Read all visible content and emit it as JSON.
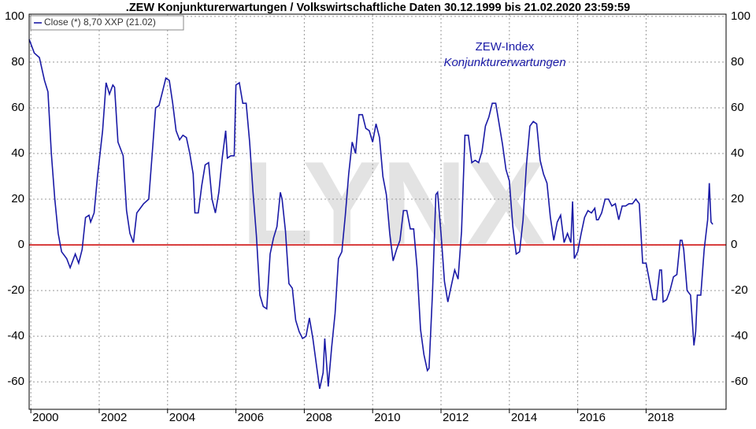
{
  "chart_data": {
    "type": "line",
    "title": ".ZEW Konjunkturerwartungen / Volkswirtschaftliche Daten 30.12.1999 bis 21.02.2020 23:59:59",
    "annotations": [
      "ZEW-Index",
      "Konjunkturerwartungen"
    ],
    "watermark": "LYNX",
    "legend": "top-left",
    "grid": true,
    "reference_line": {
      "value": 0,
      "color": "#cc0000"
    },
    "xlim": [
      1999.95,
      2020.34
    ],
    "xticks": [
      2000,
      2002,
      2004,
      2006,
      2008,
      2010,
      2012,
      2014,
      2016,
      2018
    ],
    "ylim": [
      -72,
      101
    ],
    "yticks": [
      -60,
      -40,
      -20,
      0,
      20,
      40,
      60,
      80,
      100
    ],
    "x": [
      1999.95,
      2000.1,
      2000.25,
      2000.4,
      2000.5,
      2000.6,
      2000.7,
      2000.8,
      2000.9,
      2001.05,
      2001.15,
      2001.3,
      2001.4,
      2001.5,
      2001.6,
      2001.7,
      2001.75,
      2001.85,
      2001.95,
      2002.1,
      2002.2,
      2002.3,
      2002.4,
      2002.45,
      2002.55,
      2002.7,
      2002.8,
      2002.9,
      2003.0,
      2003.1,
      2003.2,
      2003.3,
      2003.45,
      2003.55,
      2003.65,
      2003.75,
      2003.85,
      2003.95,
      2004.05,
      2004.15,
      2004.25,
      2004.35,
      2004.45,
      2004.55,
      2004.65,
      2004.75,
      2004.8,
      2004.9,
      2005.0,
      2005.1,
      2005.2,
      2005.3,
      2005.4,
      2005.5,
      2005.6,
      2005.7,
      2005.75,
      2005.85,
      2005.95,
      2006.0,
      2006.1,
      2006.2,
      2006.3,
      2006.4,
      2006.5,
      2006.6,
      2006.7,
      2006.8,
      2006.9,
      2007.0,
      2007.1,
      2007.2,
      2007.3,
      2007.35,
      2007.45,
      2007.55,
      2007.65,
      2007.75,
      2007.85,
      2007.95,
      2008.05,
      2008.15,
      2008.25,
      2008.35,
      2008.45,
      2008.55,
      2008.6,
      2008.7,
      2008.8,
      2008.9,
      2009.0,
      2009.1,
      2009.2,
      2009.3,
      2009.4,
      2009.5,
      2009.6,
      2009.7,
      2009.8,
      2009.9,
      2010.0,
      2010.1,
      2010.2,
      2010.3,
      2010.4,
      2010.5,
      2010.6,
      2010.7,
      2010.8,
      2010.9,
      2011.0,
      2011.1,
      2011.2,
      2011.3,
      2011.4,
      2011.5,
      2011.6,
      2011.65,
      2011.75,
      2011.85,
      2011.9,
      2012.0,
      2012.1,
      2012.2,
      2012.3,
      2012.4,
      2012.5,
      2012.6,
      2012.7,
      2012.8,
      2012.9,
      2013.0,
      2013.1,
      2013.2,
      2013.3,
      2013.4,
      2013.5,
      2013.6,
      2013.7,
      2013.8,
      2013.9,
      2014.0,
      2014.1,
      2014.2,
      2014.3,
      2014.4,
      2014.5,
      2014.6,
      2014.7,
      2014.8,
      2014.9,
      2015.0,
      2015.1,
      2015.2,
      2015.3,
      2015.4,
      2015.5,
      2015.6,
      2015.7,
      2015.8,
      2015.85,
      2015.9,
      2016.0,
      2016.1,
      2016.2,
      2016.3,
      2016.4,
      2016.5,
      2016.55,
      2016.6,
      2016.7,
      2016.8,
      2016.9,
      2017.0,
      2017.1,
      2017.2,
      2017.3,
      2017.4,
      2017.5,
      2017.6,
      2017.7,
      2017.8,
      2017.9,
      2018.0,
      2018.1,
      2018.2,
      2018.3,
      2018.4,
      2018.45,
      2018.5,
      2018.6,
      2018.7,
      2018.8,
      2018.9,
      2019.0,
      2019.05,
      2019.1,
      2019.2,
      2019.3,
      2019.4,
      2019.45,
      2019.5,
      2019.6,
      2019.7,
      2019.8,
      2019.85,
      2019.9,
      2019.95
    ],
    "series": [
      {
        "name": "Close (*) 8,70 XXP (21.02)",
        "color": "#1a1aa6",
        "values": [
          90,
          84,
          82,
          72,
          67,
          40,
          20,
          5,
          -3,
          -6,
          -10,
          -4,
          -8,
          -2,
          12,
          13,
          10,
          14,
          30,
          50,
          71,
          66,
          70,
          69,
          45,
          39,
          15,
          5,
          1,
          14,
          16,
          18,
          20,
          40,
          60,
          61,
          67,
          73,
          72,
          62,
          50,
          46,
          48,
          47,
          40,
          31,
          14,
          14,
          26,
          35,
          36,
          20,
          14,
          23,
          38,
          50,
          38,
          39,
          39,
          70,
          71,
          62,
          62,
          45,
          23,
          4,
          -22,
          -27,
          -28,
          -4,
          3,
          8,
          23,
          20,
          6,
          -17,
          -19,
          -33,
          -38,
          -41,
          -40,
          -32,
          -41,
          -52,
          -63,
          -56,
          -41,
          -62,
          -45,
          -30,
          -6,
          -3,
          13,
          31,
          45,
          40,
          57,
          57,
          51,
          50,
          45,
          53,
          47,
          30,
          22,
          5,
          -7,
          -2,
          2,
          15,
          15,
          7,
          7,
          -10,
          -37,
          -48,
          -55,
          -54,
          -21,
          22,
          23,
          5,
          -16,
          -25,
          -18,
          -11,
          -15,
          6,
          48,
          48,
          36,
          37,
          36,
          41,
          52,
          56,
          62,
          62,
          53,
          44,
          33,
          28,
          8,
          -4,
          -3,
          11,
          35,
          52,
          54,
          53,
          37,
          31,
          27,
          12,
          2,
          10,
          13,
          1,
          5,
          1,
          19,
          -6,
          -3,
          5,
          12,
          15,
          14,
          16,
          11,
          11,
          14,
          20,
          20,
          17,
          18,
          11,
          17,
          17,
          18,
          18,
          20,
          18,
          -8,
          -8,
          -16,
          -24,
          -24,
          -11,
          -11,
          -25,
          -24,
          -20,
          -14,
          -13,
          2,
          2,
          -2,
          -20,
          -22,
          -44,
          -38,
          -22,
          -22,
          -2,
          11,
          27,
          10,
          9
        ]
      }
    ]
  }
}
